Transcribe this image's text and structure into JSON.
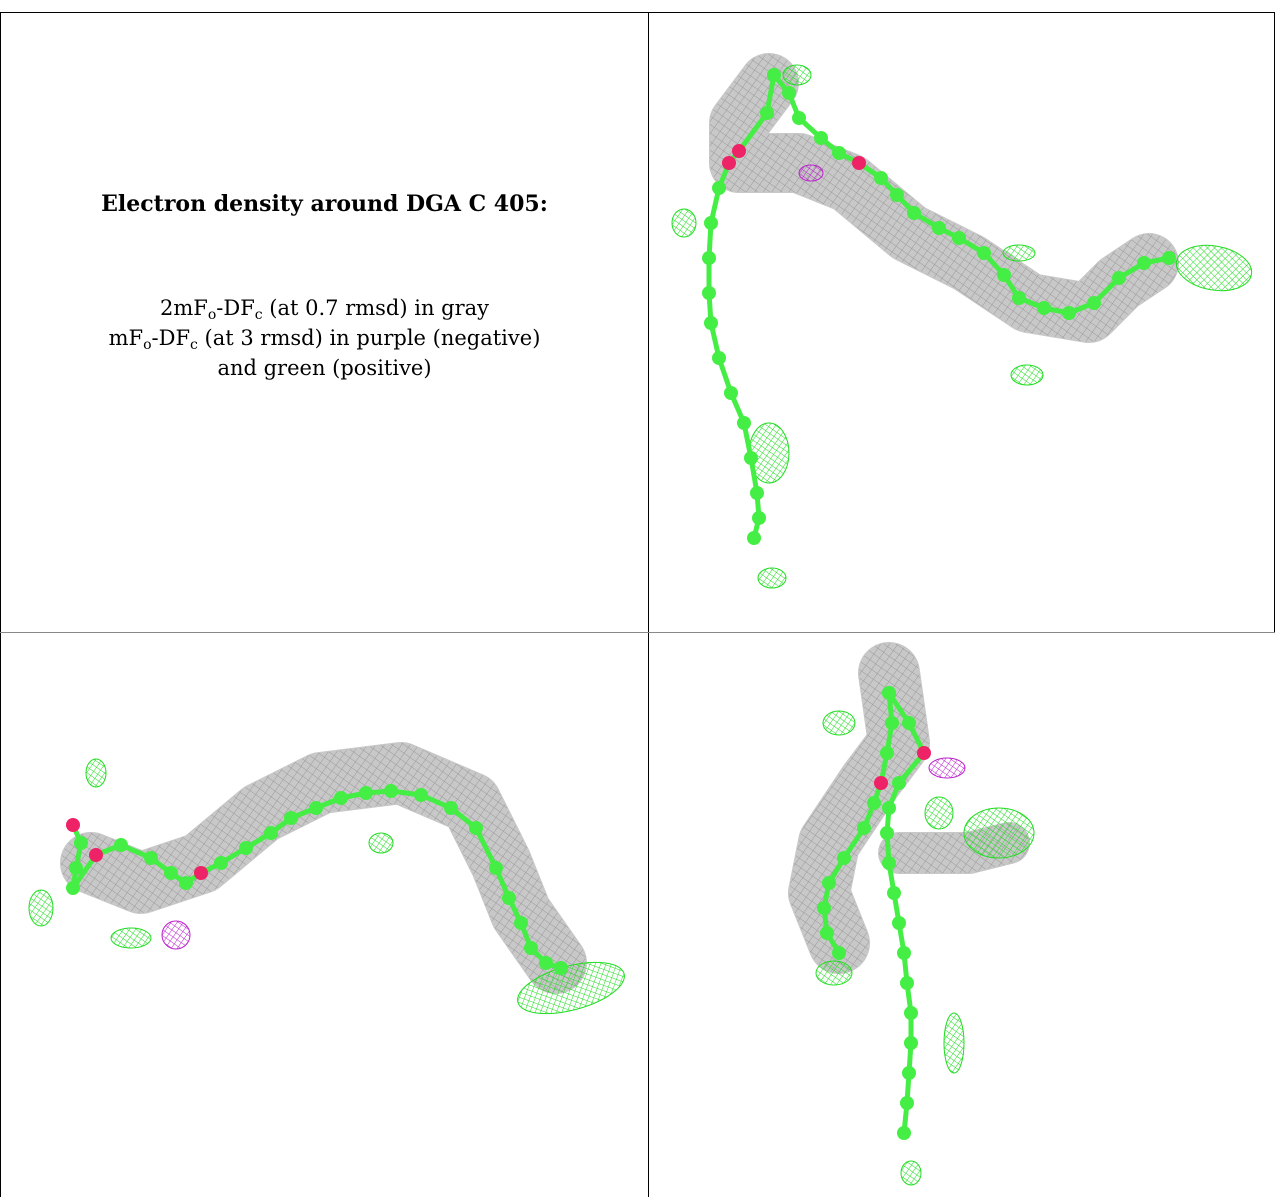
{
  "caption": {
    "title": "Electron density around DGA C 405:",
    "line1": {
      "a": "2mF",
      "a_sub": "o",
      "b": "-DF",
      "b_sub": "c",
      "c": " (at 0.7 rmsd) in gray"
    },
    "line2": {
      "a": "mF",
      "a_sub": "o",
      "b": "-DF",
      "b_sub": "c",
      "c": " (at 3 rmsd) in purple (negative)"
    },
    "line3": "and green (positive)"
  },
  "colors": {
    "carbon": "#44ee44",
    "oxygen": "#ee2266",
    "density_2fofc": "#9a9a9a",
    "density_positive": "#22dd22",
    "density_negative": "#bb22cc"
  },
  "panels": [
    {
      "name": "view-top-right"
    },
    {
      "name": "view-bottom-left"
    },
    {
      "name": "view-bottom-right"
    }
  ]
}
